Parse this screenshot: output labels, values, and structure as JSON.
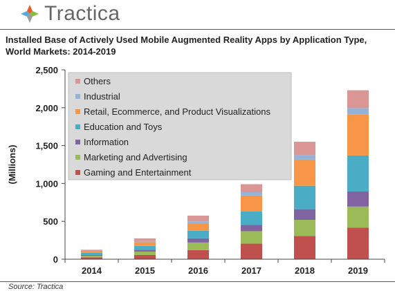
{
  "brand": {
    "name": "Tractica",
    "logo_icon": "tractica-diamond-logo-icon",
    "logo_colors": [
      "#e85a2c",
      "#8cbc3c",
      "#9c9c9c",
      "#5aaad8"
    ]
  },
  "source": "Source: Tractica",
  "chart_data": {
    "type": "bar",
    "stacked": true,
    "title": "Installed Base of Actively Used Mobile Augmented Reality Apps by Application Type, World Markets: 2014-2019",
    "xlabel": "",
    "ylabel": "(Millions)",
    "ylim": [
      0,
      2500
    ],
    "yticks": [
      0,
      500,
      1000,
      1500,
      2000,
      2500
    ],
    "ytick_labels": [
      "0",
      "500",
      "1,000",
      "1,500",
      "2,000",
      "2,500"
    ],
    "grid": false,
    "legend_placement": "top-left",
    "categories": [
      "2014",
      "2015",
      "2016",
      "2017",
      "2018",
      "2019"
    ],
    "series": [
      {
        "name": "Gaming and Entertainment",
        "color": "#c0504d",
        "values": [
          25,
          55,
          120,
          205,
          305,
          415
        ]
      },
      {
        "name": "Marketing and Advertising",
        "color": "#9bbb59",
        "values": [
          20,
          45,
          100,
          165,
          215,
          280
        ]
      },
      {
        "name": "Information",
        "color": "#8064a2",
        "values": [
          10,
          25,
          55,
          85,
          140,
          200
        ]
      },
      {
        "name": "Education and Toys",
        "color": "#4bacc6",
        "values": [
          30,
          50,
          100,
          175,
          310,
          475
        ]
      },
      {
        "name": "Retail, Ecommerce, and Product Visualizations",
        "color": "#f79646",
        "values": [
          20,
          50,
          100,
          210,
          345,
          540
        ]
      },
      {
        "name": "Industrial",
        "color": "#95b3d7",
        "values": [
          5,
          15,
          25,
          45,
          60,
          85
        ]
      },
      {
        "name": "Others",
        "color": "#d99694",
        "values": [
          15,
          35,
          75,
          105,
          175,
          235
        ]
      }
    ]
  }
}
